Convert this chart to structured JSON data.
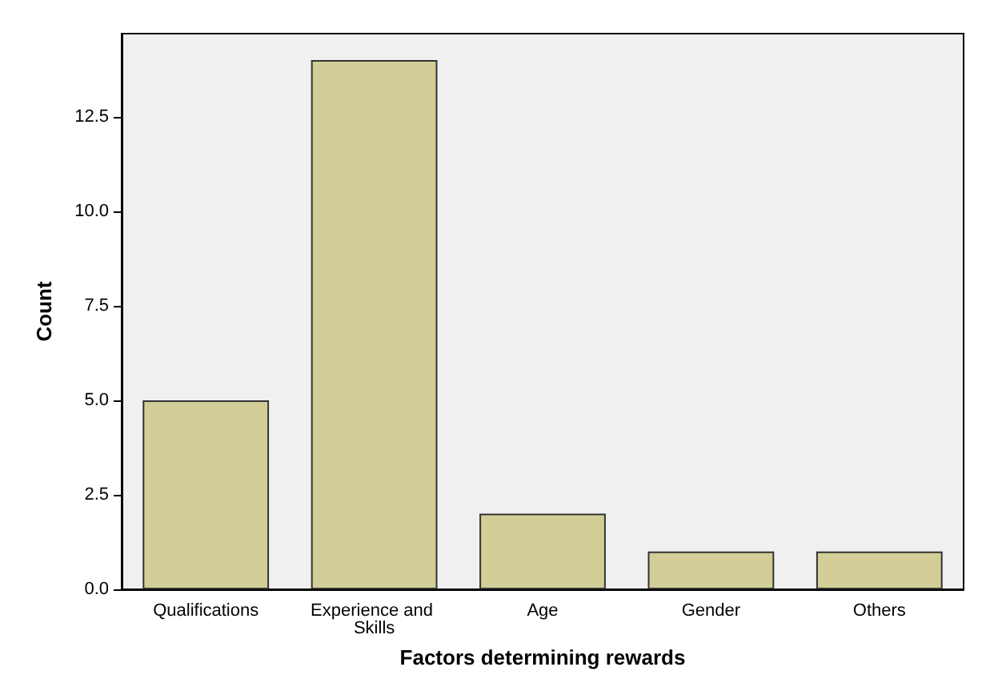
{
  "chart_data": {
    "type": "bar",
    "xlabel": "Factors determining rewards",
    "ylabel": "Count",
    "categories": [
      "Qualifications",
      "Experience and Skills",
      "Age",
      "Gender",
      "Others"
    ],
    "values": [
      5,
      14,
      2,
      1,
      1
    ],
    "color": "#d3ce97",
    "ylim": [
      0,
      14.7
    ],
    "yticks": [
      {
        "value": 0,
        "label": "0.0"
      },
      {
        "value": 2.5,
        "label": "2.5"
      },
      {
        "value": 5,
        "label": "5.0"
      },
      {
        "value": 7.5,
        "label": "7.5"
      },
      {
        "value": 10,
        "label": "10.0"
      },
      {
        "value": 12.5,
        "label": "12.5"
      }
    ],
    "grid": false
  }
}
